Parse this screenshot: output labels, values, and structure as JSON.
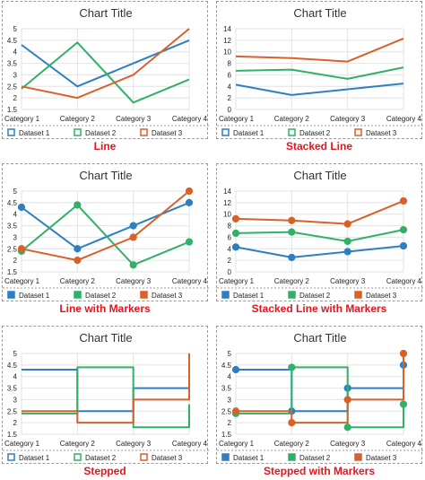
{
  "chart_data": [
    {
      "type": "line",
      "variant": "line",
      "title": "Chart Title",
      "caption": "Line",
      "categories": [
        "Category 1",
        "Category 2",
        "Category 3",
        "Category 4"
      ],
      "ylim": [
        1.5,
        5
      ],
      "yticks": [
        "1.5",
        "2",
        "2.5",
        "3",
        "3.5",
        "4",
        "4.5",
        "5"
      ],
      "ytick_values": [
        1.5,
        2,
        2.5,
        3,
        3.5,
        4,
        4.5,
        5
      ],
      "markers": false,
      "series": [
        {
          "name": "Dataset 1",
          "color": "#2e7fc1",
          "values": [
            4.3,
            2.5,
            3.5,
            4.5
          ]
        },
        {
          "name": "Dataset 2",
          "color": "#31b067",
          "values": [
            2.4,
            4.4,
            1.8,
            2.8
          ]
        },
        {
          "name": "Dataset 3",
          "color": "#d8612a",
          "values": [
            2.5,
            2.0,
            3.0,
            5.0
          ]
        }
      ],
      "legend": "bottom",
      "legend_marker": "square-outline",
      "grid": true
    },
    {
      "type": "line",
      "variant": "stacked-line",
      "title": "Chart Title",
      "caption": "Stacked Line",
      "categories": [
        "Category 1",
        "Category 2",
        "Category 3",
        "Category 4"
      ],
      "ylim": [
        0,
        14
      ],
      "yticks": [
        "0",
        "2",
        "4",
        "6",
        "8",
        "10",
        "12",
        "14"
      ],
      "ytick_values": [
        0,
        2,
        4,
        6,
        8,
        10,
        12,
        14
      ],
      "markers": false,
      "series": [
        {
          "name": "Dataset 1",
          "color": "#2e7fc1",
          "values": [
            4.3,
            2.5,
            3.5,
            4.5
          ]
        },
        {
          "name": "Dataset 2",
          "color": "#31b067",
          "values": [
            6.7,
            6.9,
            5.3,
            7.3
          ]
        },
        {
          "name": "Dataset 3",
          "color": "#d8612a",
          "values": [
            9.2,
            8.9,
            8.3,
            12.3
          ]
        }
      ],
      "legend": "bottom",
      "legend_marker": "square-outline",
      "grid": true
    },
    {
      "type": "line",
      "variant": "line-with-markers",
      "title": "Chart Title",
      "caption": "Line with Markers",
      "categories": [
        "Category 1",
        "Category 2",
        "Category 3",
        "Category 4"
      ],
      "ylim": [
        1.5,
        5
      ],
      "yticks": [
        "1.5",
        "2",
        "2.5",
        "3",
        "3.5",
        "4",
        "4.5",
        "5"
      ],
      "ytick_values": [
        1.5,
        2,
        2.5,
        3,
        3.5,
        4,
        4.5,
        5
      ],
      "markers": true,
      "series": [
        {
          "name": "Dataset 1",
          "color": "#2e7fc1",
          "values": [
            4.3,
            2.5,
            3.5,
            4.5
          ]
        },
        {
          "name": "Dataset 2",
          "color": "#31b067",
          "values": [
            2.4,
            4.4,
            1.8,
            2.8
          ]
        },
        {
          "name": "Dataset 3",
          "color": "#d8612a",
          "values": [
            2.5,
            2.0,
            3.0,
            5.0
          ]
        }
      ],
      "legend": "bottom",
      "legend_marker": "square-filled",
      "grid": true
    },
    {
      "type": "line",
      "variant": "stacked-line-with-markers",
      "title": "Chart Title",
      "caption": "Stacked Line with Markers",
      "categories": [
        "Category 1",
        "Category 2",
        "Category 3",
        "Category 4"
      ],
      "ylim": [
        0,
        14
      ],
      "yticks": [
        "0",
        "2",
        "4",
        "6",
        "8",
        "10",
        "12",
        "14"
      ],
      "ytick_values": [
        0,
        2,
        4,
        6,
        8,
        10,
        12,
        14
      ],
      "markers": true,
      "series": [
        {
          "name": "Dataset 1",
          "color": "#2e7fc1",
          "values": [
            4.3,
            2.5,
            3.5,
            4.5
          ]
        },
        {
          "name": "Dataset 2",
          "color": "#31b067",
          "values": [
            6.7,
            6.9,
            5.3,
            7.3
          ]
        },
        {
          "name": "Dataset 3",
          "color": "#d8612a",
          "values": [
            9.2,
            8.9,
            8.3,
            12.3
          ]
        }
      ],
      "legend": "bottom",
      "legend_marker": "square-filled",
      "grid": true
    },
    {
      "type": "line",
      "variant": "stepped",
      "title": "Chart Title",
      "caption": "Stepped",
      "categories": [
        "Category 1",
        "Category 2",
        "Category 3",
        "Category 4"
      ],
      "ylim": [
        1.5,
        5
      ],
      "yticks": [
        "1.5",
        "2",
        "2.5",
        "3",
        "3.5",
        "4",
        "4.5",
        "5"
      ],
      "ytick_values": [
        1.5,
        2,
        2.5,
        3,
        3.5,
        4,
        4.5,
        5
      ],
      "markers": false,
      "stepped": true,
      "series": [
        {
          "name": "Dataset 1",
          "color": "#2e7fc1",
          "values": [
            4.3,
            2.5,
            3.5,
            4.5
          ]
        },
        {
          "name": "Dataset 2",
          "color": "#31b067",
          "values": [
            2.4,
            4.4,
            1.8,
            2.8
          ]
        },
        {
          "name": "Dataset 3",
          "color": "#d8612a",
          "values": [
            2.5,
            2.0,
            3.0,
            5.0
          ]
        }
      ],
      "legend": "bottom",
      "legend_marker": "square-outline",
      "grid": true
    },
    {
      "type": "line",
      "variant": "stepped-with-markers",
      "title": "Chart Title",
      "caption": "Stepped with Markers",
      "categories": [
        "Category 1",
        "Category 2",
        "Category 3",
        "Category 4"
      ],
      "ylim": [
        1.5,
        5
      ],
      "yticks": [
        "1.5",
        "2",
        "2.5",
        "3",
        "3.5",
        "4",
        "4.5",
        "5"
      ],
      "ytick_values": [
        1.5,
        2,
        2.5,
        3,
        3.5,
        4,
        4.5,
        5
      ],
      "markers": true,
      "stepped": true,
      "series": [
        {
          "name": "Dataset 1",
          "color": "#2e7fc1",
          "values": [
            4.3,
            2.5,
            3.5,
            4.5
          ]
        },
        {
          "name": "Dataset 2",
          "color": "#31b067",
          "values": [
            2.4,
            4.4,
            1.8,
            2.8
          ]
        },
        {
          "name": "Dataset 3",
          "color": "#d8612a",
          "values": [
            2.5,
            2.0,
            3.0,
            5.0
          ]
        }
      ],
      "legend": "bottom",
      "legend_marker": "square-filled",
      "grid": true
    }
  ]
}
